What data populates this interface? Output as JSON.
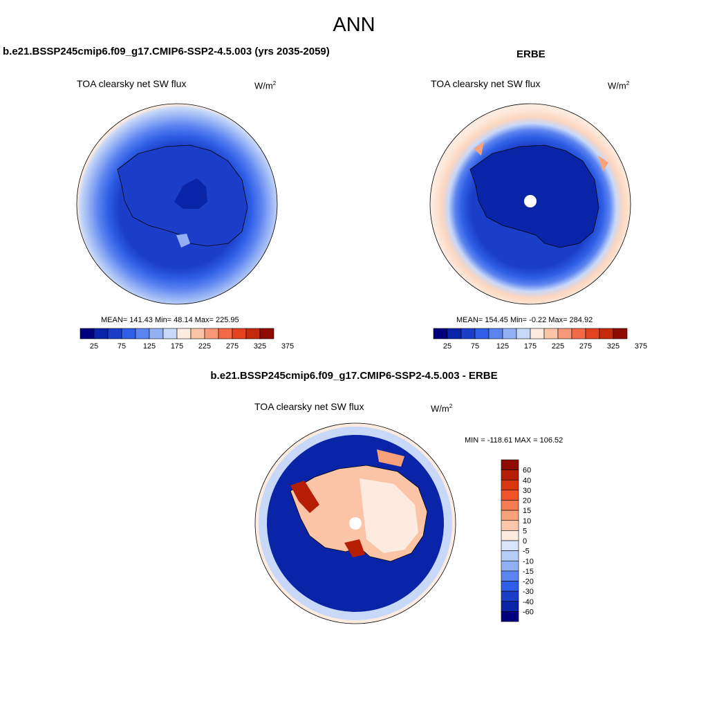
{
  "title": "ANN",
  "panels": [
    {
      "title": "b.e21.BSSP245cmip6.f09_g17.CMIP6-SSP2-4.5.003 (yrs 2035-2059)",
      "subtitle": "TOA clearsky net SW flux",
      "units_base": "W/m",
      "units_exp": "2",
      "stats": "MEAN= 141.43  Min=  48.14  Max= 225.95"
    },
    {
      "title": "ERBE",
      "subtitle": "TOA clearsky net SW flux",
      "units_base": "W/m",
      "units_exp": "2",
      "stats": "MEAN= 154.45  Min=  -0.22  Max= 284.92"
    },
    {
      "title": "b.e21.BSSP245cmip6.f09_g17.CMIP6-SSP2-4.5.003 - ERBE",
      "subtitle": "TOA clearsky net SW flux",
      "units_base": "W/m",
      "units_exp": "2",
      "stats": "MIN = -118.61 MAX = 106.52"
    }
  ],
  "colorbar_h": {
    "colors": [
      "#00007f",
      "#0a24a8",
      "#1b3ec8",
      "#2f5fe6",
      "#5c84f0",
      "#93b0f5",
      "#c8d8f8",
      "#fdebdf",
      "#fbc4a6",
      "#f79878",
      "#f26a48",
      "#e5431f",
      "#c42a0c",
      "#8f0b00"
    ],
    "ticks": [
      "25",
      "75",
      "125",
      "175",
      "225",
      "275",
      "325",
      "375"
    ]
  },
  "colorbar_v": {
    "colors": [
      "#8f0b00",
      "#b51d05",
      "#d8360d",
      "#f05428",
      "#f47c50",
      "#f8a27c",
      "#fcc7a8",
      "#fdebdf",
      "#d8e5fb",
      "#b6cdf8",
      "#8fb0f5",
      "#5c84f0",
      "#2f5fe6",
      "#1b3ec8",
      "#0a24a8",
      "#00007f"
    ],
    "labels": [
      "60",
      "40",
      "30",
      "20",
      "15",
      "10",
      "5",
      "0",
      "-5",
      "-10",
      "-15",
      "-20",
      "-30",
      "-40",
      "-60"
    ]
  }
}
